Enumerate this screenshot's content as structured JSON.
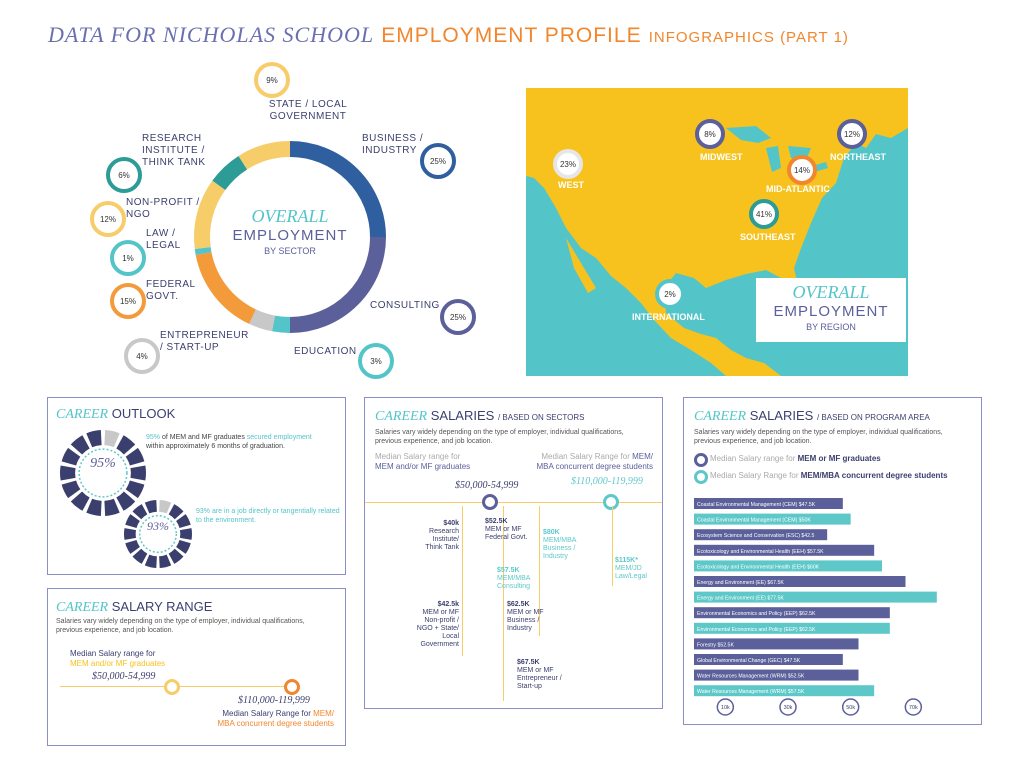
{
  "title": {
    "part1": "DATA FOR NICHOLAS SCHOOL",
    "part2": "EMPLOYMENT PROFILE",
    "part3": "INFOGRAPHICS (PART 1)"
  },
  "donut": {
    "title_it": "OVERALL",
    "title": "EMPLOYMENT",
    "subtitle": "BY SECTOR",
    "sectors": [
      {
        "label": "BUSINESS / INDUSTRY",
        "pct_label": "25%",
        "value": 25,
        "color": "#2f5f9e"
      },
      {
        "label": "CONSULTING",
        "pct_label": "25%",
        "value": 25,
        "color": "#5b5f9a"
      },
      {
        "label": "EDUCATION",
        "pct_label": "3%",
        "value": 3,
        "color": "#53c5c9"
      },
      {
        "label": "ENTREPRENEUR / START-UP",
        "pct_label": "4%",
        "value": 4,
        "color": "#c8c8c8"
      },
      {
        "label": "FEDERAL GOVT.",
        "pct_label": "15%",
        "value": 15,
        "color": "#f39a3a"
      },
      {
        "label": "LAW / LEGAL",
        "pct_label": "1%",
        "value": 1,
        "color": "#53c5c9"
      },
      {
        "label": "NON-PROFIT / NGO",
        "pct_label": "12%",
        "value": 12,
        "color": "#f7cd6a"
      },
      {
        "label": "RESEARCH INSTITUTE / THINK TANK",
        "pct_label": "6%",
        "value": 6,
        "color": "#2e9c96"
      },
      {
        "label": "STATE / LOCAL GOVERNMENT",
        "pct_label": "9%",
        "value": 9,
        "color": "#f7cd6a"
      }
    ]
  },
  "map": {
    "title_it": "OVERALL",
    "title": "EMPLOYMENT",
    "subtitle": "BY REGION",
    "regions": [
      {
        "label": "WEST",
        "pct": "23%",
        "color": "#ffffff"
      },
      {
        "label": "MIDWEST",
        "pct": "8%",
        "color": "#5b5f9a"
      },
      {
        "label": "NORTHEAST",
        "pct": "12%",
        "color": "#5b5f9a"
      },
      {
        "label": "MID-ATLANTIC",
        "pct": "14%",
        "color": "#f0872e"
      },
      {
        "label": "SOUTHEAST",
        "pct": "41%",
        "color": "#2e9c96"
      },
      {
        "label": "INTERNATIONAL",
        "pct": "2%",
        "color": "#53c5c9"
      }
    ]
  },
  "outlook": {
    "h_it": "CAREER",
    "h": "OUTLOOK",
    "ring1": "95%",
    "ring2": "93%",
    "text1_a": "95%",
    "text1_b": " of MEM and MF graduates ",
    "text1_c": "secured employment",
    "text1_d": " within approximately 6 months of graduation.",
    "text2_a": "93%",
    "text2_b": " are in a ",
    "text2_c": "job",
    "text2_d": " directly or tangentially related to the environment."
  },
  "salary_range": {
    "h_it": "CAREER",
    "h": "SALARY RANGE",
    "note": "Salaries vary widely depending on the type of employer, individual qualifications, previous experience, and job location.",
    "label1_a": "Median Salary range for",
    "label1_b": "MEM and/or MF graduates",
    "val1": "$50,000-54,999",
    "val2": "$110,000-119,999",
    "label2_a": "Median Salary Range for ",
    "label2_b": "MEM/",
    "label2_c": "MBA concurrent degree students"
  },
  "sectors_panel": {
    "h_it": "CAREER",
    "h": "SALARIES",
    "sub": "/ BASED ON SECTORS",
    "note": "Salaries vary widely depending on the type of employer, individual qualifications, previous experience, and job location.",
    "leg1_a": "Median Salary range for",
    "leg1_b": "MEM and/or MF graduates",
    "leg2_a": "Median Salary Range for ",
    "leg2_b": "MEM/",
    "leg2_c": "MBA concurrent degree students",
    "val1": "$50,000-54,999",
    "val2": "$110,000-119,999",
    "items": [
      {
        "v": "$40k",
        "t": "Research Institute/ Think Tank"
      },
      {
        "v": "$52.5K",
        "t": "MEM or MF Federal Govt."
      },
      {
        "v": "$80K",
        "t": "MEM/MBA Business / Industry"
      },
      {
        "v": "$57.5K",
        "t": "MEM/MBA Consulting"
      },
      {
        "v": "$115K*",
        "t": "MEM/JD Law/Legal"
      },
      {
        "v": "$42.5k",
        "t": "MEM or MF Non-profit / NGO + State/ Local Government"
      },
      {
        "v": "$62.5K",
        "t": "MEM or MF Business / Industry"
      },
      {
        "v": "$67.5K",
        "t": "MEM or MF Entrepreneur / Start-up"
      }
    ]
  },
  "program_panel": {
    "h_it": "CAREER",
    "h": "SALARIES",
    "sub": "/ BASED ON PROGRAM AREA",
    "note": "Salaries vary widely depending on the type of employer, individual qualifications, previous experience, and job location.",
    "leg1_a": "Median Salary range for ",
    "leg1_b": "MEM or MF graduates",
    "leg2_a": "Median Salary Range for ",
    "leg2_b": "MEM/MBA concurrent degree students"
  },
  "chart_data": {
    "type": "bar",
    "orientation": "horizontal",
    "xlim": [
      0,
      75
    ],
    "ticks": [
      "10k",
      "30k",
      "50k",
      "70k"
    ],
    "tick_values": [
      10,
      30,
      50,
      70
    ],
    "bars": [
      {
        "label": "Coastal Environmental Management (CEM) $47.5K",
        "value": 47.5,
        "color": "#5b5f9a"
      },
      {
        "label": "Coastal Environmental Management (CEM) $50K",
        "value": 50,
        "color": "#5ec8c9"
      },
      {
        "label": "Ecosystem Science and Conservation (ESC) $42.5",
        "value": 42.5,
        "color": "#5b5f9a"
      },
      {
        "label": "Ecotoxicology and Environmental Health (EEH) $57.5K",
        "value": 57.5,
        "color": "#5b5f9a"
      },
      {
        "label": "Ecotoxicology and Environmental Health (EEH) $60K",
        "value": 60,
        "color": "#5ec8c9"
      },
      {
        "label": "Energy and Environment (EE) $67.5K",
        "value": 67.5,
        "color": "#5b5f9a"
      },
      {
        "label": "Energy and Environment (EE) $77.5K",
        "value": 77.5,
        "color": "#5ec8c9"
      },
      {
        "label": "Environmental Economics and Policy (EEP) $62.5K",
        "value": 62.5,
        "color": "#5b5f9a"
      },
      {
        "label": "Environmental Economics and Policy (EEP) $62.5K",
        "value": 62.5,
        "color": "#5ec8c9"
      },
      {
        "label": "Forestry $52.5K",
        "value": 52.5,
        "color": "#5b5f9a"
      },
      {
        "label": "Global Environmental Change (GEC) $47.5K",
        "value": 47.5,
        "color": "#5b5f9a"
      },
      {
        "label": "Water Resources Management (WRM) $52.5K",
        "value": 52.5,
        "color": "#5b5f9a"
      },
      {
        "label": "Water Resources Management (WRM) $57.5K",
        "value": 57.5,
        "color": "#5ec8c9"
      }
    ]
  }
}
